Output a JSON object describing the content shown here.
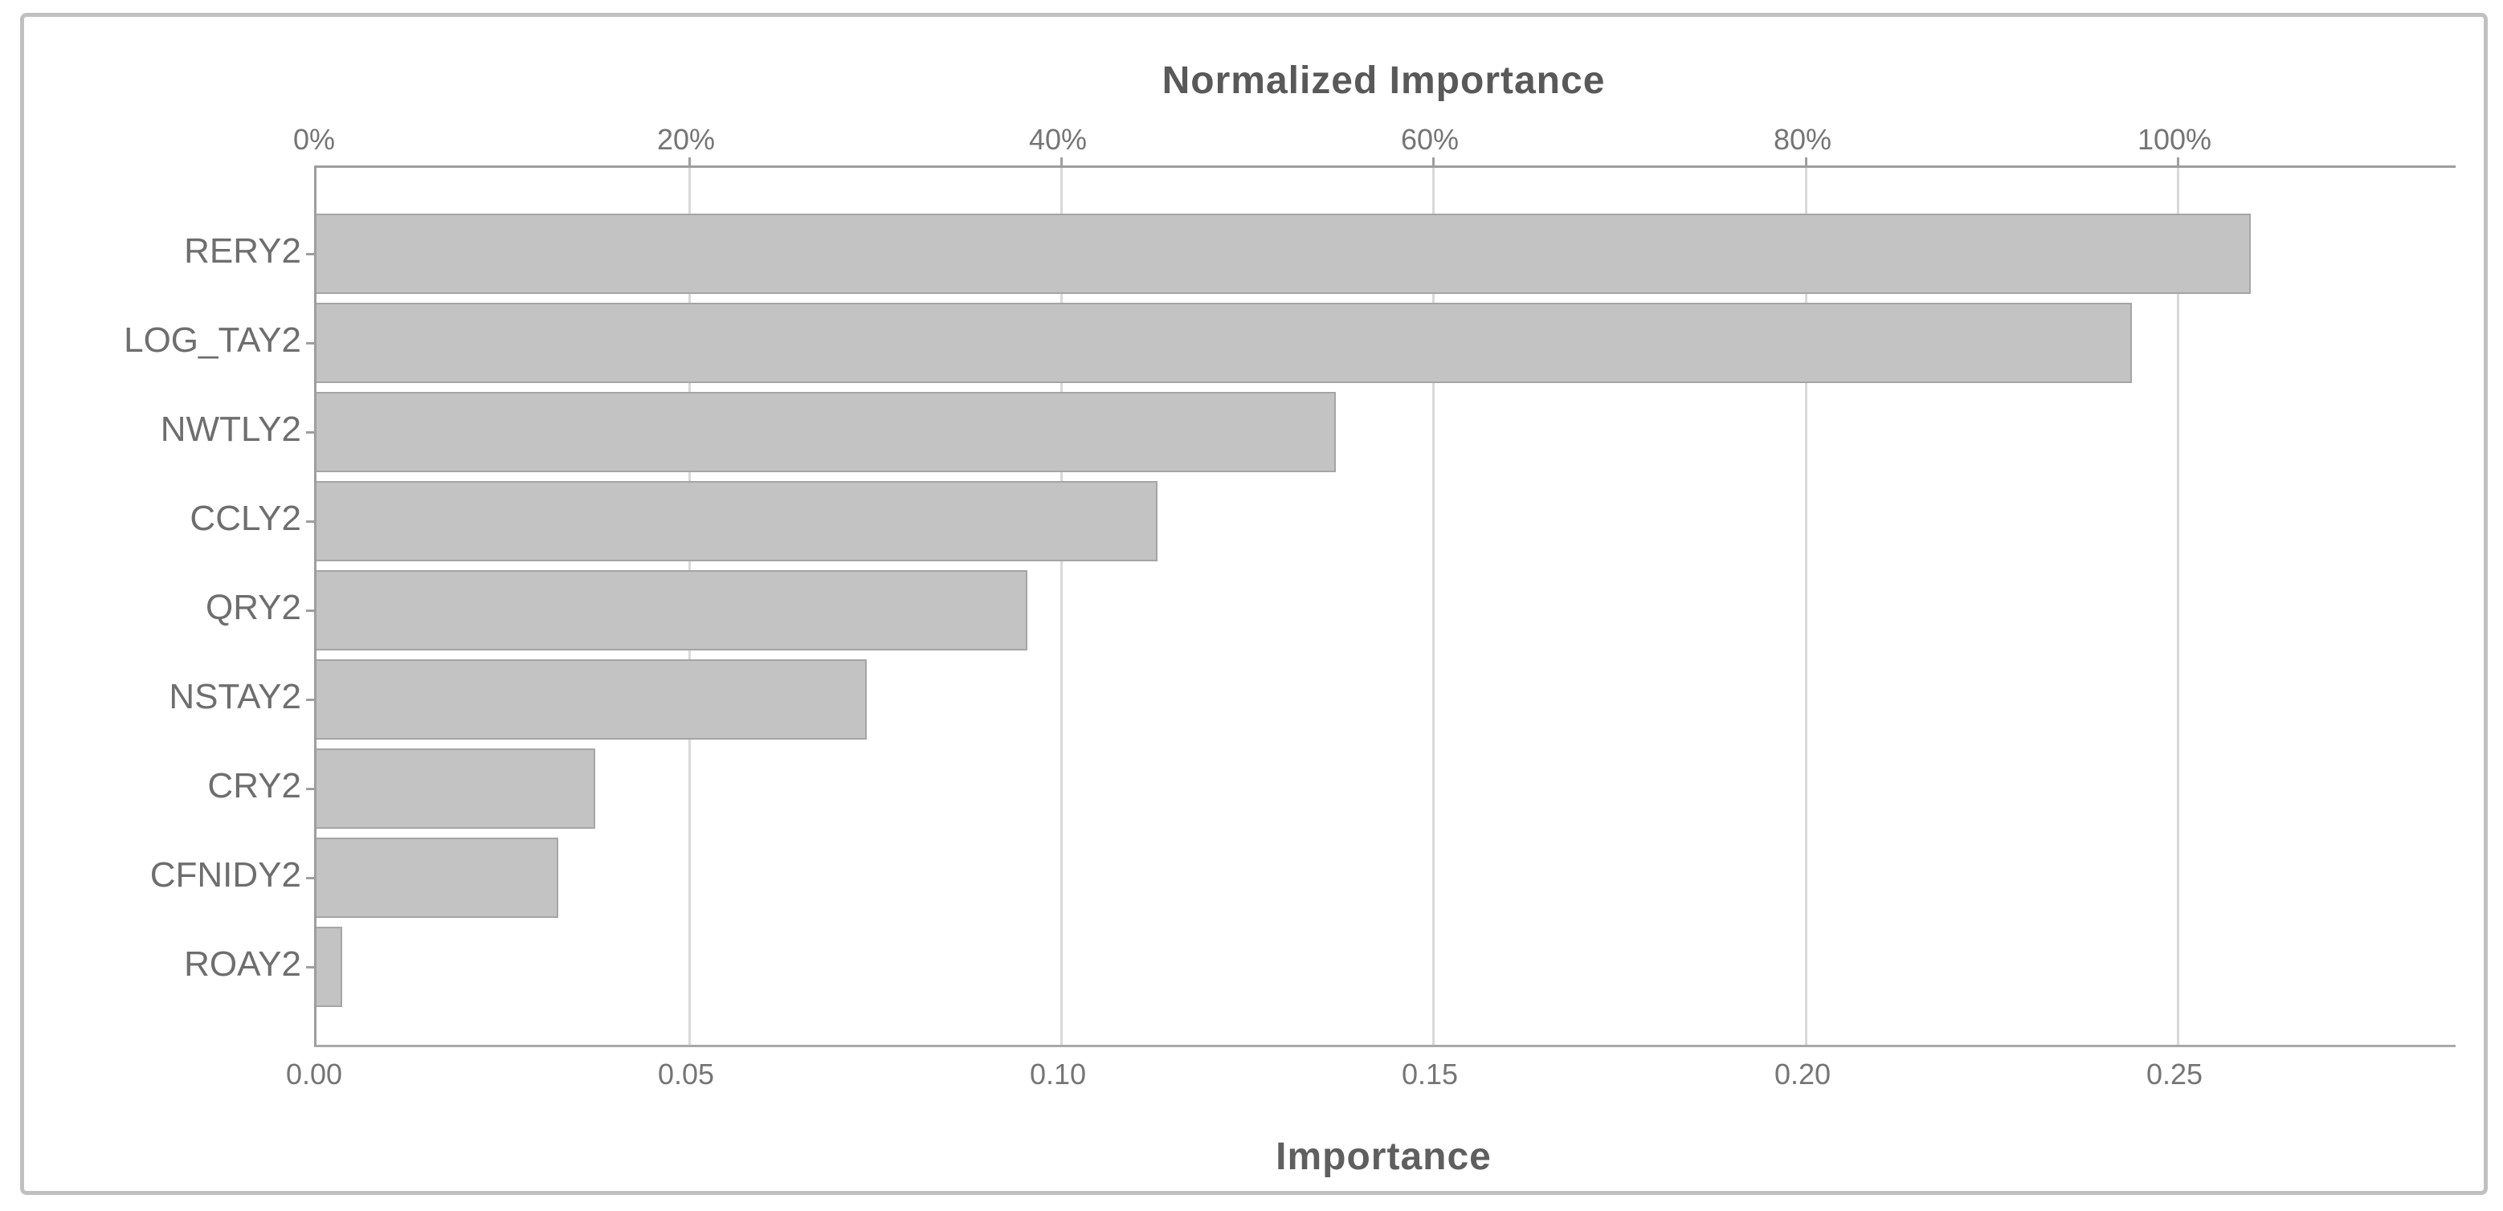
{
  "chart_data": {
    "type": "bar",
    "orientation": "horizontal",
    "title": "Normalized Importance",
    "xlabel": "Importance",
    "categories": [
      "RERY2",
      "LOG_TAY2",
      "NWTLY2",
      "CCLY2",
      "QRY2",
      "NSTAY2",
      "CRY2",
      "CFNIDY2",
      "ROAY2"
    ],
    "values": [
      0.26,
      0.244,
      0.137,
      0.113,
      0.0955,
      0.074,
      0.0375,
      0.0325,
      0.0035
    ],
    "xlim": [
      0,
      0.2875
    ],
    "xmax": 0.2875,
    "grid": true,
    "legend_position": "none",
    "top_axis_ticks": [
      {
        "v": 0.0,
        "label": "0%"
      },
      {
        "v": 0.05,
        "label": "20%"
      },
      {
        "v": 0.1,
        "label": "40%"
      },
      {
        "v": 0.15,
        "label": "60%"
      },
      {
        "v": 0.2,
        "label": "80%"
      },
      {
        "v": 0.25,
        "label": "100%"
      }
    ],
    "bottom_axis_ticks": [
      {
        "v": 0.0,
        "label": "0.00"
      },
      {
        "v": 0.05,
        "label": "0.05"
      },
      {
        "v": 0.1,
        "label": "0.10"
      },
      {
        "v": 0.15,
        "label": "0.15"
      },
      {
        "v": 0.2,
        "label": "0.20"
      },
      {
        "v": 0.25,
        "label": "0.25"
      }
    ],
    "gridline_values": [
      0.05,
      0.1,
      0.15,
      0.2,
      0.25
    ]
  },
  "colors": {
    "bar_fill": "#c3c3c3",
    "bar_border": "#a5a5a5",
    "gridline": "#d9d9d9",
    "axis_line": "#9e9e9e",
    "tick_text": "#757575",
    "category_text": "#6e6e6e",
    "title_text": "#595959",
    "frame_border": "#c0c0c0",
    "background": "#ffffff"
  }
}
